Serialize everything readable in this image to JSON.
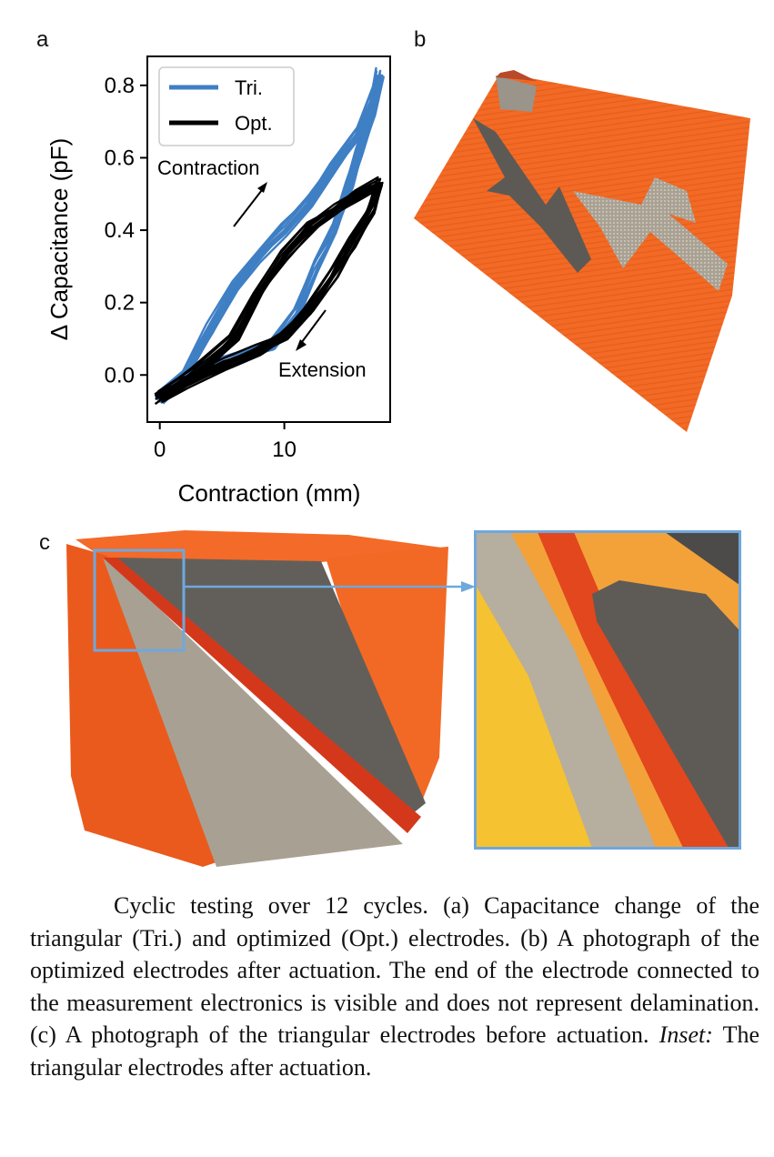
{
  "panels": {
    "a": "a",
    "b": "b",
    "c": "c"
  },
  "chart_data": {
    "type": "line",
    "xlabel": "Contraction (mm)",
    "ylabel": "Δ Capacitance (pF)",
    "xlim": [
      -1,
      18.5
    ],
    "ylim": [
      -0.13,
      0.88
    ],
    "xticks": [
      0,
      10
    ],
    "yticks": [
      0.0,
      0.2,
      0.4,
      0.6,
      0.8
    ],
    "ytick_labels": [
      "0.0",
      "0.2",
      "0.4",
      "0.6",
      "0.8"
    ],
    "grid": false,
    "legend_position": "top-left",
    "annotations": {
      "contraction": "Contraction",
      "extension": "Extension"
    },
    "cycles": 12,
    "series": [
      {
        "name": "Tri.",
        "color": "#3f7fc4",
        "contraction": [
          [
            0,
            -0.06
          ],
          [
            2,
            0.0
          ],
          [
            4,
            0.12
          ],
          [
            6,
            0.24
          ],
          [
            8,
            0.33
          ],
          [
            10,
            0.4
          ],
          [
            12,
            0.48
          ],
          [
            14,
            0.58
          ],
          [
            16,
            0.67
          ],
          [
            17.3,
            0.78
          ],
          [
            17.6,
            0.83
          ]
        ],
        "extension": [
          [
            17.6,
            0.83
          ],
          [
            17.0,
            0.72
          ],
          [
            16.0,
            0.62
          ],
          [
            15.2,
            0.52
          ],
          [
            14.0,
            0.4
          ],
          [
            12.5,
            0.3
          ],
          [
            11.0,
            0.17
          ],
          [
            9.0,
            0.08
          ],
          [
            6.0,
            0.05
          ],
          [
            3.0,
            0.02
          ],
          [
            0,
            -0.06
          ]
        ]
      },
      {
        "name": "Opt.",
        "color": "#000000",
        "contraction": [
          [
            0,
            -0.06
          ],
          [
            3,
            0.01
          ],
          [
            6,
            0.1
          ],
          [
            8,
            0.23
          ],
          [
            10,
            0.33
          ],
          [
            12,
            0.41
          ],
          [
            14,
            0.46
          ],
          [
            16,
            0.5
          ],
          [
            17.6,
            0.53
          ]
        ],
        "extension": [
          [
            17.6,
            0.53
          ],
          [
            17.0,
            0.46
          ],
          [
            15.5,
            0.37
          ],
          [
            14.0,
            0.28
          ],
          [
            12.0,
            0.18
          ],
          [
            10.0,
            0.11
          ],
          [
            8.0,
            0.07
          ],
          [
            5.0,
            0.03
          ],
          [
            2.0,
            -0.02
          ],
          [
            0,
            -0.06
          ]
        ]
      }
    ]
  },
  "caption": {
    "part1": "Cyclic testing over 12 cycles. (a) Capacitance change of the triangular (Tri.) and optimized (Opt.) electrodes. (b) A photograph of the optimized electrodes after actuation. The end of the electrode connected to the measurement electronics is visible and does not represent delamination. (c) A photograph of the triangular electrodes before actuation.",
    "inset_label": "Inset:",
    "part2": "The triangular electrodes after actuation."
  }
}
